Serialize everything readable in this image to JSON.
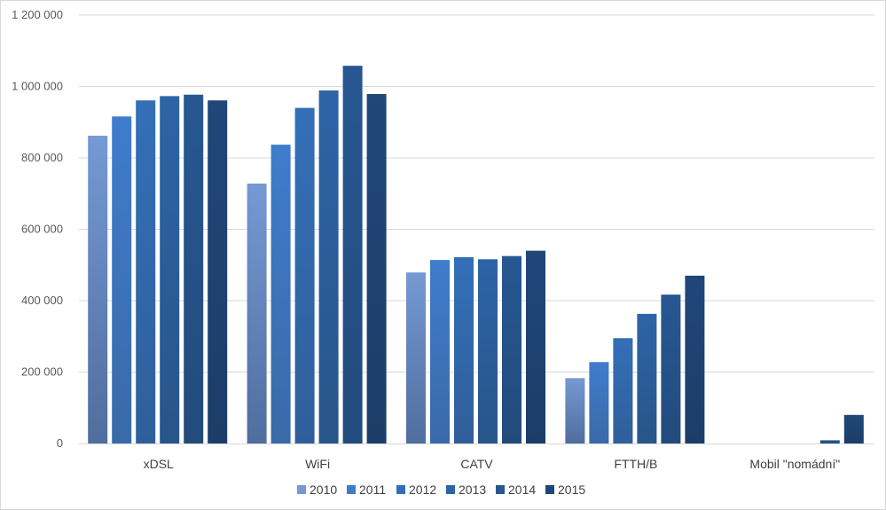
{
  "chart_data": {
    "type": "bar",
    "title": "",
    "xlabel": "",
    "ylabel": "",
    "categories": [
      "xDSL",
      "WiFi",
      "CATV",
      "FTTH/B",
      "Mobil \"nomádní\""
    ],
    "ylim": [
      0,
      1200000
    ],
    "yticks": [
      0,
      200000,
      400000,
      600000,
      800000,
      1000000,
      1200000
    ],
    "ytick_labels": [
      "0",
      "200 000",
      "400 000",
      "600 000",
      "800 000",
      "1 000 000",
      "1 200 000"
    ],
    "grid": true,
    "legend_position": "bottom",
    "series": [
      {
        "name": "2010",
        "color_top": "#7699d4",
        "color_bottom": "#4f6e9e",
        "values": [
          862000,
          728000,
          479000,
          183000,
          0
        ]
      },
      {
        "name": "2011",
        "color_top": "#3f7ccc",
        "color_bottom": "#3a6aa8",
        "values": [
          916000,
          837000,
          514000,
          228000,
          0
        ]
      },
      {
        "name": "2012",
        "color_top": "#336fb8",
        "color_bottom": "#2f5f9a",
        "values": [
          961000,
          940000,
          522000,
          295000,
          0
        ]
      },
      {
        "name": "2013",
        "color_top": "#2d64a6",
        "color_bottom": "#28558a",
        "values": [
          973000,
          989000,
          516000,
          363000,
          0
        ]
      },
      {
        "name": "2014",
        "color_top": "#275792",
        "color_bottom": "#224b7c",
        "values": [
          977000,
          1058000,
          525000,
          417000,
          9000
        ]
      },
      {
        "name": "2015",
        "color_top": "#20467a",
        "color_bottom": "#1c3d68",
        "values": [
          961000,
          979000,
          540000,
          470000,
          80000
        ]
      }
    ]
  }
}
